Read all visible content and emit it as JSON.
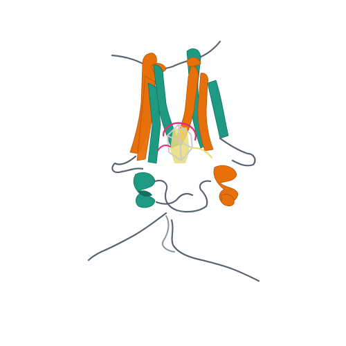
{
  "image": {
    "subject": "protein-ribbon-structure",
    "colors": {
      "background": "#ffffff",
      "chain_a": "#e8700a",
      "chain_a_dark": "#b85206",
      "chain_b": "#1f9a82",
      "chain_b_dark": "#137060",
      "coil": "#5a6270",
      "coil_light": "#8a929c",
      "ligand_pink": "#e0307a",
      "ligand_yellow": "#e8dc7a",
      "ligand_white": "#c8ccd0"
    }
  }
}
